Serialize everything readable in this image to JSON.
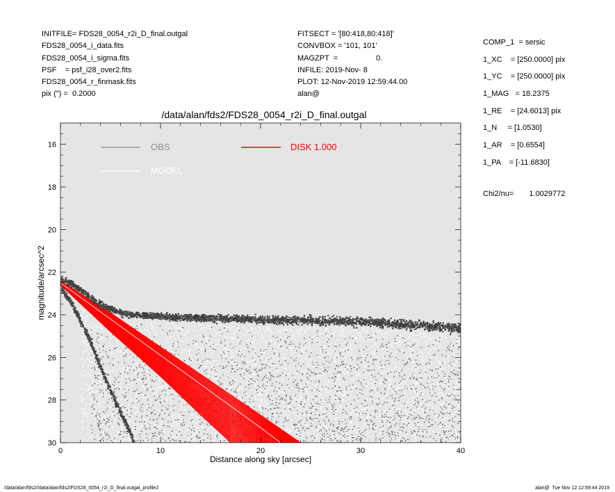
{
  "header": {
    "left_lines": [
      "INITFILE= FDS28_0054_r2i_D_final.outgal",
      "FDS28_0054_i_data.fits",
      "FDS28_0054_i_sigma.fits",
      "PSF    = psf_i28_over2.fits",
      "FDS28_0054_r_finmask.fits",
      "pix (\") =  0.2000"
    ],
    "mid_lines": [
      "FITSECT = '[80:418,80:418]'",
      "CONVBOX = '101, 101'",
      "MAGZPT  =                  0.",
      "INFILE: 2019-Nov- 8",
      "PLOT: 12-Nov-2019 12:59:44.00",
      "alan@"
    ],
    "right_lines": [
      "COMP_1  = sersic",
      "1_XC    = [250.0000] pix",
      "1_YC    = [250.0000] pix",
      "1_MAG   = 18.2375",
      "1_RE    = [24.6013] pix",
      "1_N     = [1.0530]",
      "1_AR    = [0.6554]",
      "1_PA    = [-11.6830]"
    ],
    "chi_label": "Chi2/nu=",
    "chi_value": "1.0029772"
  },
  "footer": {
    "left": "/data/alan/fds2//data/alan/fds2/FDS28_0054_r2i_D_final.outgal_profile2",
    "right": "alan@  Tue Nov 12 12:59:44 2019"
  },
  "chart_data": {
    "type": "scatter",
    "title": "/data/alan/fds2/FDS28_0054_r2i_D_final.outgal",
    "xlabel": "Distance along sky [arcsec]",
    "ylabel": "magnitude/arcsec^2",
    "xlim": [
      0,
      40
    ],
    "ylim": [
      30,
      15
    ],
    "y_inverted": true,
    "x_ticks": [
      "0",
      "10",
      "20",
      "30",
      "40"
    ],
    "y_ticks": [
      "16",
      "18",
      "20",
      "22",
      "24",
      "26",
      "28",
      "30"
    ],
    "grid": false,
    "background": "#e5e5e5",
    "legend": {
      "placement": "top-left",
      "entries": [
        {
          "label": "OBS",
          "color": "#8c8c8c"
        },
        {
          "label": "MODEL",
          "color": "#ffffff"
        },
        {
          "label": "DISK  1.000",
          "color": "#ff0000"
        }
      ]
    },
    "series": [
      {
        "name": "OBS",
        "color": "#4a4a4a",
        "description_points": {
          "upper_ridge": [
            [
              0.1,
              22.3
            ],
            [
              1,
              22.5
            ],
            [
              2,
              22.8
            ],
            [
              3,
              23.2
            ],
            [
              4,
              23.5
            ],
            [
              6,
              23.9
            ],
            [
              8,
              24.0
            ],
            [
              12,
              24.1
            ],
            [
              20,
              24.2
            ],
            [
              30,
              24.3
            ],
            [
              40,
              24.6
            ]
          ],
          "lower_ridge": [
            [
              0.1,
              22.8
            ],
            [
              1,
              23.4
            ],
            [
              2,
              24.3
            ],
            [
              3,
              25.3
            ],
            [
              4,
              26.5
            ],
            [
              5,
              27.6
            ],
            [
              6,
              28.6
            ],
            [
              7,
              29.6
            ],
            [
              7.3,
              30.0
            ]
          ],
          "scatter_range": [
            [
              5,
              24.3,
              29.8
            ],
            [
              15,
              24.5,
              30.0
            ],
            [
              25,
              24.6,
              30.0
            ],
            [
              35,
              24.8,
              30.0
            ],
            [
              40,
              25.0,
              30.0
            ]
          ]
        }
      },
      {
        "name": "MODEL",
        "color": "#ffffff",
        "description_points": {
          "line": [
            [
              0,
              22.5
            ],
            [
              5,
              24.2
            ],
            [
              10,
              25.9
            ],
            [
              15,
              27.6
            ],
            [
              20,
              29.3
            ],
            [
              22,
              30.0
            ]
          ]
        }
      },
      {
        "name": "DISK  1.000",
        "color": "#ff0000",
        "description_points": {
          "upper_edge": [
            [
              0,
              22.4
            ],
            [
              5,
              23.9
            ],
            [
              10,
              25.5
            ],
            [
              15,
              27.1
            ],
            [
              20,
              28.7
            ],
            [
              24,
              30.0
            ]
          ],
          "lower_edge": [
            [
              0,
              22.6
            ],
            [
              5,
              24.8
            ],
            [
              10,
              26.9
            ],
            [
              14,
              28.7
            ],
            [
              17,
              30.0
            ]
          ]
        }
      }
    ]
  }
}
